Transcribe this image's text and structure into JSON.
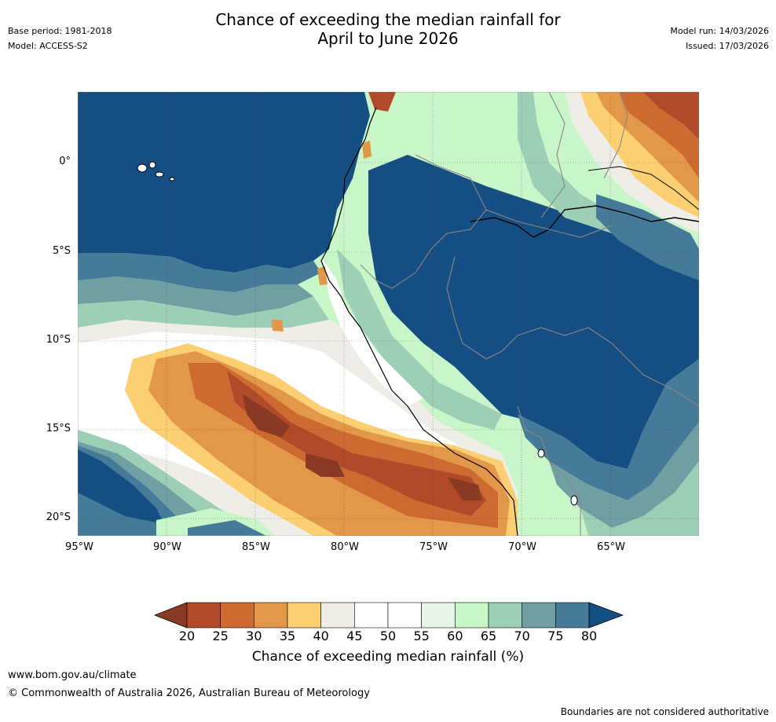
{
  "header": {
    "title_line1": "Chance of exceeding the median rainfall for",
    "title_line2": "April to June 2026",
    "base_period": "Base period: 1981-2018",
    "model": "Model: ACCESS-S2",
    "model_run": "Model run: 14/03/2026",
    "issued": "Issued: 17/03/2026"
  },
  "map": {
    "lat_labels": [
      "0°",
      "5°S",
      "10°S",
      "15°S",
      "20°S"
    ],
    "lon_labels": [
      "95°W",
      "90°W",
      "85°W",
      "80°W",
      "75°W",
      "70°W",
      "65°W"
    ]
  },
  "colorbar": {
    "ticks": [
      "20",
      "25",
      "30",
      "35",
      "40",
      "45",
      "50",
      "55",
      "60",
      "65",
      "70",
      "75",
      "80"
    ],
    "colors": [
      "#8a3a24",
      "#b04a28",
      "#cc6a32",
      "#e39748",
      "#fccf72",
      "#efede8",
      "#ffffff",
      "#ffffff",
      "#e8f4ea",
      "#c9f6c8",
      "#9ccfb6",
      "#6f9fa2",
      "#457b98",
      "#154e82"
    ],
    "label": "Chance of exceeding median rainfall (%)"
  },
  "footer": {
    "website": "www.bom.gov.au/climate",
    "copyright": "© Commonwealth of Australia 2026, Australian Bureau of Meteorology",
    "disclaimer": "Boundaries are not considered authoritative"
  }
}
